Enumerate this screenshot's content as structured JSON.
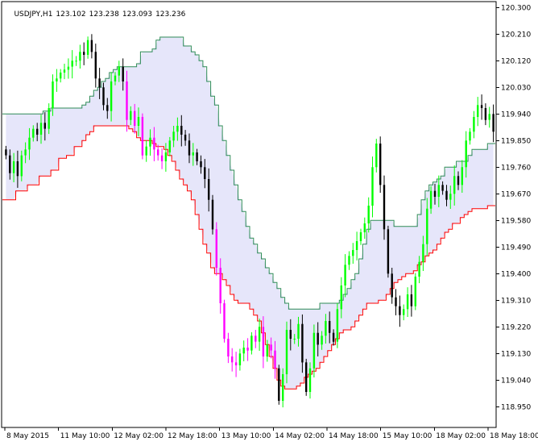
{
  "header": {
    "symbol": "USDJPY,H1",
    "open": "123.102",
    "high": "123.238",
    "low": "123.093",
    "close": "123.236"
  },
  "colors": {
    "bull": "#00ff00",
    "bear": "#000000",
    "strong_bear": "#ff00ff",
    "upper_line": "#2e8b57",
    "lower_line": "#ff0000",
    "band_fill": "#e6e6fa",
    "axis": "#000000"
  },
  "chart_data": {
    "type": "candlestick",
    "y_range": [
      118.88,
      120.32
    ],
    "y_ticks": [
      "120.300",
      "120.210",
      "120.120",
      "120.030",
      "119.940",
      "119.850",
      "119.760",
      "119.670",
      "119.580",
      "119.490",
      "119.400",
      "119.310",
      "119.220",
      "119.130",
      "119.040",
      "118.950"
    ],
    "x_ticks": [
      "8 May 2015",
      "11 May 10:00",
      "12 May 02:00",
      "12 May 18:00",
      "13 May 10:00",
      "14 May 02:00",
      "14 May 18:00",
      "15 May 10:00",
      "18 May 02:00",
      "18 May 18:00"
    ],
    "close": [
      119.8,
      119.74,
      119.78,
      119.73,
      119.8,
      119.82,
      119.86,
      119.89,
      119.87,
      119.91,
      119.89,
      119.96,
      120.05,
      120.06,
      120.08,
      120.09,
      120.1,
      120.12,
      120.12,
      120.15,
      120.14,
      120.19,
      120.15,
      120.06,
      120.03,
      119.97,
      119.95,
      120.05,
      120.07,
      120.1,
      120.05,
      119.92,
      119.95,
      119.9,
      119.93,
      119.8,
      119.83,
      119.86,
      119.82,
      119.8,
      119.78,
      119.81,
      119.85,
      119.88,
      119.9,
      119.87,
      119.85,
      119.8,
      119.81,
      119.78,
      119.76,
      119.72,
      119.65,
      119.55,
      119.42,
      119.3,
      119.18,
      119.12,
      119.1,
      119.09,
      119.13,
      119.15,
      119.14,
      119.19,
      119.17,
      119.22,
      119.12,
      119.16,
      119.14,
      119.08,
      118.97,
      119.06,
      119.21,
      119.18,
      119.18,
      119.23,
      119.1,
      119.0,
      119.08,
      119.2,
      119.16,
      119.19,
      119.24,
      119.2,
      119.17,
      119.28,
      119.36,
      119.43,
      119.46,
      119.48,
      119.51,
      119.54,
      119.57,
      119.63,
      119.76,
      119.84,
      119.7,
      119.55,
      119.4,
      119.32,
      119.29,
      119.26,
      119.28,
      119.33,
      119.29,
      119.39,
      119.44,
      119.5,
      119.62,
      119.68,
      119.66,
      119.7,
      119.68,
      119.65,
      119.67,
      119.73,
      119.7,
      119.76,
      119.85,
      119.88,
      119.93,
      119.97,
      119.96,
      119.92,
      119.94,
      119.88
    ],
    "upper": [
      119.94,
      119.94,
      119.94,
      119.94,
      119.94,
      119.94,
      119.94,
      119.94,
      119.94,
      119.94,
      119.95,
      119.95,
      119.96,
      119.96,
      119.96,
      119.96,
      119.96,
      119.96,
      119.96,
      119.96,
      119.97,
      119.98,
      120.0,
      120.02,
      120.03,
      120.05,
      120.06,
      120.08,
      120.09,
      120.1,
      120.1,
      120.1,
      120.1,
      120.1,
      120.11,
      120.15,
      120.15,
      120.15,
      120.16,
      120.19,
      120.2,
      120.2,
      120.2,
      120.2,
      120.2,
      120.2,
      120.17,
      120.17,
      120.15,
      120.14,
      120.12,
      120.1,
      120.05,
      120.0,
      119.97,
      119.9,
      119.85,
      119.8,
      119.75,
      119.7,
      119.65,
      119.61,
      119.56,
      119.52,
      119.5,
      119.47,
      119.45,
      119.42,
      119.4,
      119.37,
      119.35,
      119.32,
      119.3,
      119.28,
      119.28,
      119.28,
      119.28,
      119.28,
      119.28,
      119.28,
      119.28,
      119.3,
      119.3,
      119.3,
      119.3,
      119.3,
      119.31,
      119.33,
      119.35,
      119.38,
      119.4,
      119.45,
      119.5,
      119.55,
      119.58,
      119.58,
      119.58,
      119.58,
      119.58,
      119.58,
      119.56,
      119.56,
      119.56,
      119.56,
      119.56,
      119.56,
      119.6,
      119.65,
      119.68,
      119.7,
      119.71,
      119.72,
      119.73,
      119.76,
      119.76,
      119.76,
      119.78,
      119.78,
      119.78,
      119.8,
      119.82,
      119.82,
      119.82,
      119.82,
      119.84,
      119.84
    ],
    "lower": [
      119.65,
      119.65,
      119.65,
      119.68,
      119.68,
      119.68,
      119.7,
      119.7,
      119.7,
      119.73,
      119.73,
      119.73,
      119.75,
      119.75,
      119.79,
      119.79,
      119.8,
      119.8,
      119.83,
      119.83,
      119.85,
      119.87,
      119.88,
      119.9,
      119.9,
      119.9,
      119.9,
      119.9,
      119.9,
      119.9,
      119.9,
      119.9,
      119.89,
      119.88,
      119.86,
      119.85,
      119.85,
      119.85,
      119.84,
      119.83,
      119.83,
      119.82,
      119.8,
      119.78,
      119.75,
      119.72,
      119.7,
      119.68,
      119.65,
      119.6,
      119.55,
      119.5,
      119.47,
      119.42,
      119.4,
      119.4,
      119.38,
      119.36,
      119.33,
      119.31,
      119.3,
      119.3,
      119.3,
      119.28,
      119.26,
      119.24,
      119.2,
      119.16,
      119.12,
      119.08,
      119.04,
      119.02,
      119.01,
      119.01,
      119.01,
      119.02,
      119.03,
      119.05,
      119.06,
      119.07,
      119.08,
      119.1,
      119.12,
      119.14,
      119.16,
      119.18,
      119.2,
      119.21,
      119.21,
      119.22,
      119.24,
      119.26,
      119.28,
      119.3,
      119.3,
      119.3,
      119.31,
      119.31,
      119.33,
      119.35,
      119.37,
      119.38,
      119.39,
      119.4,
      119.4,
      119.41,
      119.43,
      119.44,
      119.46,
      119.47,
      119.48,
      119.5,
      119.52,
      119.54,
      119.55,
      119.57,
      119.57,
      119.59,
      119.6,
      119.61,
      119.62,
      119.62,
      119.62,
      119.62,
      119.63,
      119.63
    ]
  }
}
